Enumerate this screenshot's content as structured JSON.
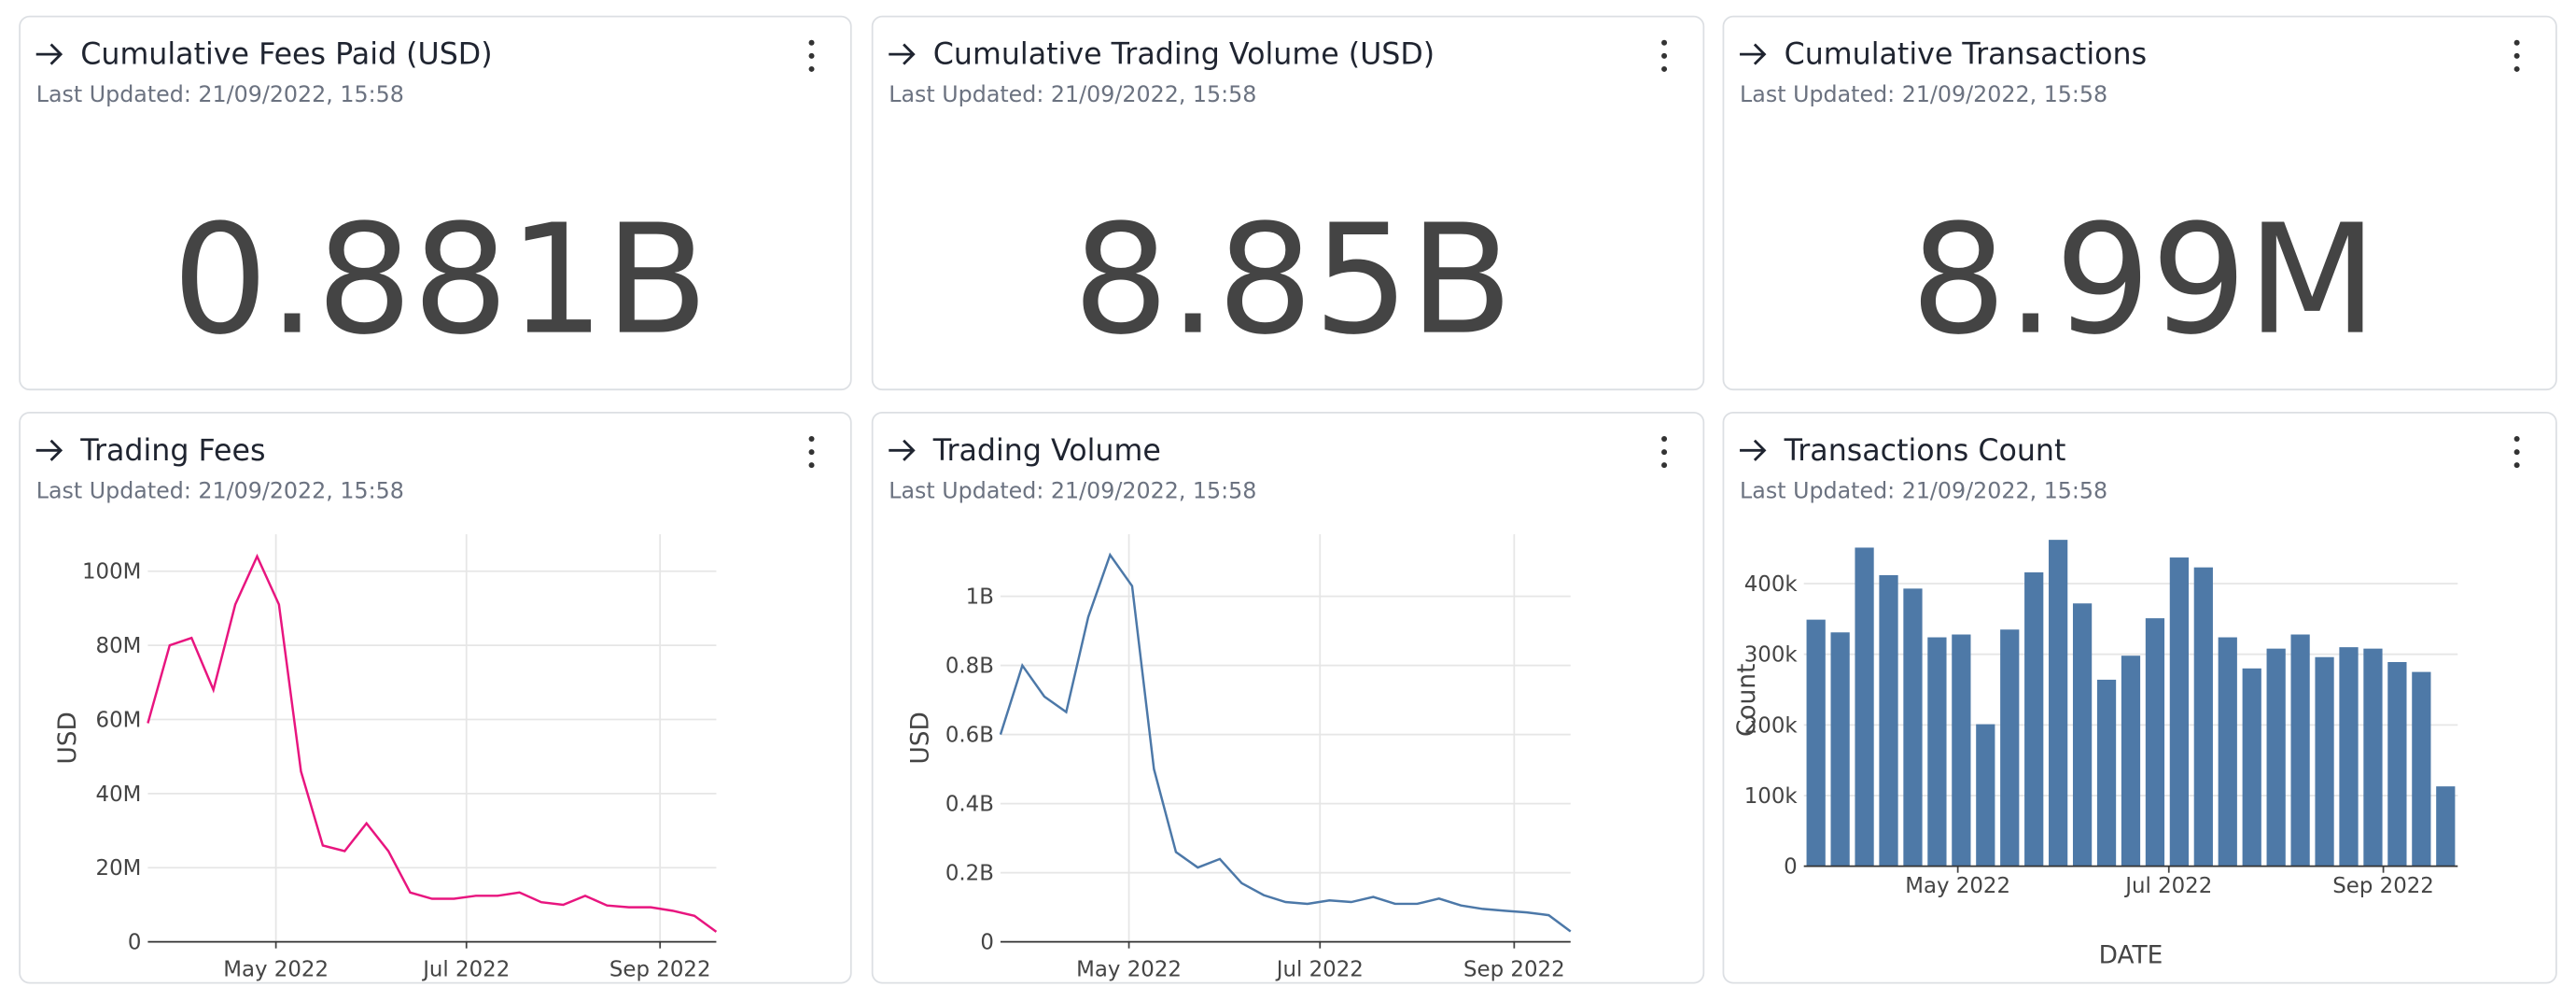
{
  "stat_cards": [
    {
      "title": "Cumulative Fees Paid (USD)",
      "subtitle": "Last Updated: 21/09/2022, 15:58",
      "value": "0.881B"
    },
    {
      "title": "Cumulative Trading Volume (USD)",
      "subtitle": "Last Updated: 21/09/2022, 15:58",
      "value": "8.85B"
    },
    {
      "title": "Cumulative Transactions",
      "subtitle": "Last Updated: 21/09/2022, 15:58",
      "value": "8.99M"
    }
  ],
  "chart_data": [
    {
      "type": "line",
      "title": "Trading Fees",
      "subtitle": "Last Updated: 21/09/2022, 15:58",
      "ylabel": "USD",
      "color": "#e8157f",
      "grid": true,
      "x": [
        "2022-03-21",
        "2022-03-28",
        "2022-04-04",
        "2022-04-11",
        "2022-04-18",
        "2022-04-25",
        "2022-05-02",
        "2022-05-09",
        "2022-05-16",
        "2022-05-23",
        "2022-05-30",
        "2022-06-06",
        "2022-06-13",
        "2022-06-20",
        "2022-06-27",
        "2022-07-04",
        "2022-07-11",
        "2022-07-18",
        "2022-07-25",
        "2022-08-01",
        "2022-08-08",
        "2022-08-15",
        "2022-08-22",
        "2022-08-29",
        "2022-09-05",
        "2022-09-12",
        "2022-09-19"
      ],
      "values": [
        59000000,
        80000000,
        82000000,
        68000000,
        91000000,
        104000000,
        91000000,
        46000000,
        26000000,
        24500000,
        32000000,
        24500000,
        13300000,
        11600000,
        11600000,
        12400000,
        12400000,
        13300000,
        10700000,
        10000000,
        12400000,
        9800000,
        9300000,
        9300000,
        8400000,
        7000000,
        2700000
      ],
      "ylim": [
        0,
        110000000
      ],
      "yticks": [
        0,
        {
          "value": 20000000,
          "label": "20M"
        },
        {
          "value": 40000000,
          "label": "40M"
        },
        {
          "value": 60000000,
          "label": "60M"
        },
        {
          "value": 80000000,
          "label": "80M"
        },
        {
          "value": 100000000,
          "label": "100M"
        }
      ],
      "xticks": [
        {
          "value": "2022-05-01",
          "label": "May 2022"
        },
        {
          "value": "2022-07-01",
          "label": "Jul 2022"
        },
        {
          "value": "2022-09-01",
          "label": "Sep 2022"
        }
      ]
    },
    {
      "type": "line",
      "title": "Trading Volume",
      "subtitle": "Last Updated: 21/09/2022, 15:58",
      "ylabel": "USD",
      "color": "#4c78a8",
      "grid": true,
      "x": [
        "2022-03-21",
        "2022-03-28",
        "2022-04-04",
        "2022-04-11",
        "2022-04-18",
        "2022-04-25",
        "2022-05-02",
        "2022-05-09",
        "2022-05-16",
        "2022-05-23",
        "2022-05-30",
        "2022-06-06",
        "2022-06-13",
        "2022-06-20",
        "2022-06-27",
        "2022-07-04",
        "2022-07-11",
        "2022-07-18",
        "2022-07-25",
        "2022-08-01",
        "2022-08-08",
        "2022-08-15",
        "2022-08-22",
        "2022-08-29",
        "2022-09-05",
        "2022-09-12",
        "2022-09-19"
      ],
      "values": [
        600000000,
        800000000,
        710000000,
        665000000,
        940000000,
        1120000000,
        1030000000,
        500000000,
        260000000,
        215000000,
        240000000,
        170000000,
        135000000,
        115000000,
        110000000,
        120000000,
        115000000,
        130000000,
        110000000,
        110000000,
        125000000,
        105000000,
        95000000,
        90000000,
        85000000,
        77000000,
        30000000
      ],
      "ylim": [
        0,
        1180000000
      ],
      "yticks": [
        0,
        {
          "value": 200000000,
          "label": "0.2B"
        },
        {
          "value": 400000000,
          "label": "0.4B"
        },
        {
          "value": 600000000,
          "label": "0.6B"
        },
        {
          "value": 800000000,
          "label": "0.8B"
        },
        {
          "value": 1000000000,
          "label": "1B"
        }
      ],
      "xticks": [
        {
          "value": "2022-05-01",
          "label": "May 2022"
        },
        {
          "value": "2022-07-01",
          "label": "Jul 2022"
        },
        {
          "value": "2022-09-01",
          "label": "Sep 2022"
        }
      ]
    },
    {
      "type": "bar",
      "title": "Transactions Count",
      "subtitle": "Last Updated: 21/09/2022, 15:58",
      "ylabel": "Count",
      "xlabel": "DATE",
      "color": "#4e79a7",
      "grid": true,
      "x": [
        "2022-03-21",
        "2022-03-28",
        "2022-04-04",
        "2022-04-11",
        "2022-04-18",
        "2022-04-25",
        "2022-05-02",
        "2022-05-09",
        "2022-05-16",
        "2022-05-23",
        "2022-05-30",
        "2022-06-06",
        "2022-06-13",
        "2022-06-20",
        "2022-06-27",
        "2022-07-04",
        "2022-07-11",
        "2022-07-18",
        "2022-07-25",
        "2022-08-01",
        "2022-08-08",
        "2022-08-15",
        "2022-08-22",
        "2022-08-29",
        "2022-09-05",
        "2022-09-12",
        "2022-09-19"
      ],
      "values": [
        349000,
        331000,
        451000,
        412000,
        393000,
        324000,
        328000,
        201000,
        335000,
        416000,
        462000,
        372000,
        264000,
        298000,
        351000,
        437000,
        423000,
        324000,
        280000,
        308000,
        328000,
        296000,
        310000,
        308000,
        289000,
        275000,
        113000
      ],
      "ylim": [
        0,
        470000
      ],
      "yticks": [
        0,
        {
          "value": 100000,
          "label": "100k"
        },
        {
          "value": 200000,
          "label": "200k"
        },
        {
          "value": 300000,
          "label": "300k"
        },
        {
          "value": 400000,
          "label": "400k"
        }
      ],
      "xticks": [
        {
          "value": "2022-05-01",
          "label": "May 2022"
        },
        {
          "value": "2022-07-01",
          "label": "Jul 2022"
        },
        {
          "value": "2022-09-01",
          "label": "Sep 2022"
        }
      ]
    }
  ]
}
